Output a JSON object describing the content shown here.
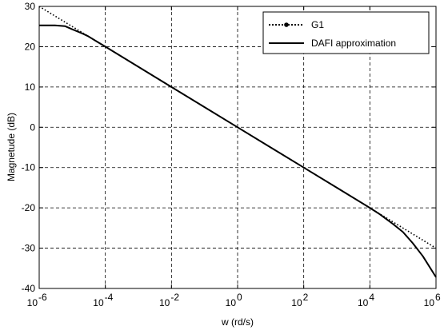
{
  "chart_data": {
    "type": "line",
    "title": "",
    "xlabel": "w (rd/s)",
    "ylabel": "Magnetude (dB)",
    "xscale": "log",
    "xlim": [
      1e-06,
      1000000.0
    ],
    "ylim": [
      -40,
      30
    ],
    "grid": true,
    "legend_position": "top-right",
    "x_ticks": [
      {
        "value": 1e-06,
        "base": "10",
        "exp": "-6"
      },
      {
        "value": 0.0001,
        "base": "10",
        "exp": "-4"
      },
      {
        "value": 0.01,
        "base": "10",
        "exp": "-2"
      },
      {
        "value": 1,
        "base": "10",
        "exp": "0"
      },
      {
        "value": 100.0,
        "base": "10",
        "exp": "2"
      },
      {
        "value": 10000.0,
        "base": "10",
        "exp": "4"
      },
      {
        "value": 1000000.0,
        "base": "10",
        "exp": "6"
      }
    ],
    "y_ticks": [
      {
        "value": 30,
        "label": "30"
      },
      {
        "value": 20,
        "label": "20"
      },
      {
        "value": 10,
        "label": "10"
      },
      {
        "value": 0,
        "label": "0"
      },
      {
        "value": -10,
        "label": "-10"
      },
      {
        "value": -20,
        "label": "-20"
      },
      {
        "value": -30,
        "label": "-30"
      },
      {
        "value": -40,
        "label": "-40"
      }
    ],
    "series": [
      {
        "name": "G1",
        "style": "dotted",
        "marker": "dot",
        "color": "#000000",
        "x": [
          1e-06,
          1e-05,
          0.0001,
          0.001,
          0.01,
          0.1,
          1,
          10.0,
          100.0,
          1000.0,
          10000.0,
          100000.0,
          1000000.0
        ],
        "y": [
          30,
          25,
          20,
          15,
          10,
          5,
          0,
          -5,
          -10,
          -15,
          -20,
          -25,
          -30
        ]
      },
      {
        "name": "DAFI approximation",
        "style": "solid",
        "color": "#000000",
        "x": [
          1e-06,
          3e-06,
          6e-06,
          1e-05,
          2e-05,
          3e-05,
          5e-05,
          0.0001,
          0.001,
          0.01,
          0.1,
          1,
          10.0,
          100.0,
          1000.0,
          10000.0,
          20000.0,
          50000.0,
          100000.0,
          200000.0,
          400000.0,
          1000000.0
        ],
        "y": [
          25.3,
          25.3,
          25.1,
          24.3,
          23.3,
          22.6,
          21.5,
          20,
          15,
          10,
          5,
          0,
          -5,
          -10,
          -15,
          -20,
          -21.6,
          -24,
          -26,
          -28.8,
          -32,
          -37.2
        ]
      }
    ]
  }
}
